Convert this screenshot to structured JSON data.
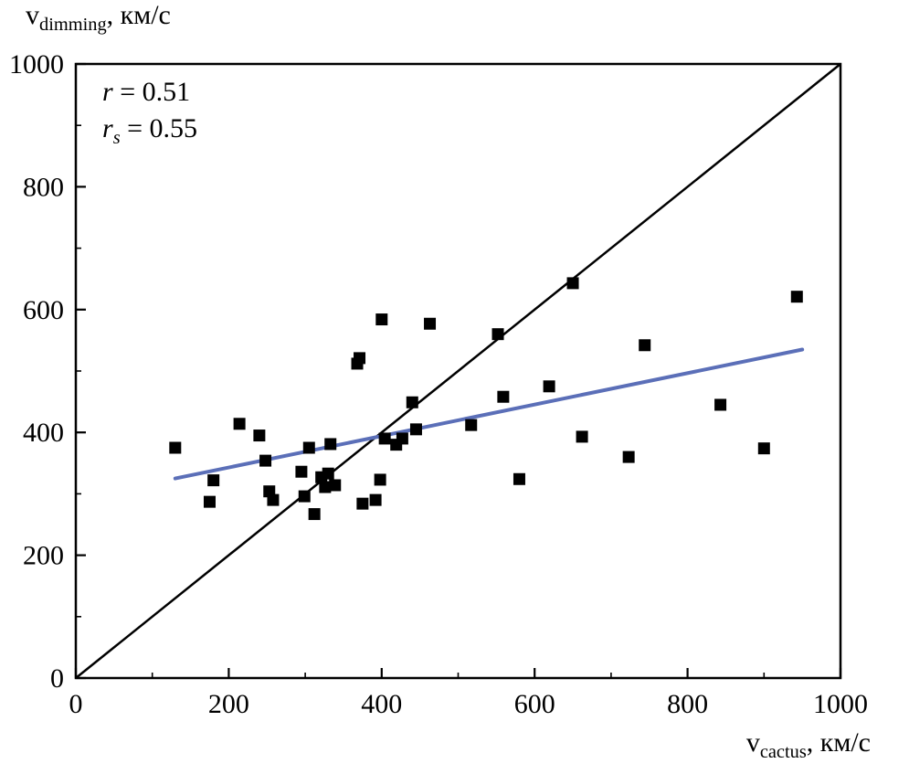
{
  "chart_data": {
    "type": "scatter",
    "title": "",
    "xlabel": {
      "base": "v",
      "sub": "cactus",
      "rest": ", км/с"
    },
    "ylabel": {
      "base": "v",
      "sub": "dimming",
      "rest": ", км/с"
    },
    "xlim": [
      0,
      1000
    ],
    "ylim": [
      0,
      1000
    ],
    "major_ticks": [
      0,
      200,
      400,
      600,
      800,
      1000
    ],
    "minor_tick_step": 100,
    "grid": false,
    "legend": "none",
    "annotations": [
      {
        "sym": "r",
        "sub": "",
        "val": " = 0.51"
      },
      {
        "sym": "r",
        "sub": "s",
        "val": " = 0.55"
      }
    ],
    "identity_line": {
      "x1": 0,
      "y1": 0,
      "x2": 1000,
      "y2": 1000,
      "color": "#000000",
      "width": 2.5
    },
    "fit_line": {
      "x1": 130,
      "y1": 325,
      "x2": 950,
      "y2": 535,
      "color": "#5b6fb8",
      "width": 4
    },
    "marker": {
      "shape": "square",
      "size": 13,
      "color": "#000000"
    },
    "points": [
      [
        130,
        375
      ],
      [
        175,
        287
      ],
      [
        180,
        322
      ],
      [
        214,
        414
      ],
      [
        240,
        395
      ],
      [
        248,
        354
      ],
      [
        253,
        304
      ],
      [
        258,
        290
      ],
      [
        295,
        336
      ],
      [
        299,
        296
      ],
      [
        305,
        375
      ],
      [
        312,
        267
      ],
      [
        321,
        327
      ],
      [
        326,
        311
      ],
      [
        330,
        333
      ],
      [
        333,
        381
      ],
      [
        339,
        314
      ],
      [
        368,
        512
      ],
      [
        371,
        521
      ],
      [
        375,
        284
      ],
      [
        392,
        290
      ],
      [
        398,
        323
      ],
      [
        400,
        584
      ],
      [
        404,
        390
      ],
      [
        419,
        380
      ],
      [
        427,
        390
      ],
      [
        440,
        449
      ],
      [
        445,
        405
      ],
      [
        463,
        577
      ],
      [
        517,
        412
      ],
      [
        552,
        560
      ],
      [
        559,
        458
      ],
      [
        580,
        324
      ],
      [
        619,
        475
      ],
      [
        650,
        643
      ],
      [
        662,
        393
      ],
      [
        723,
        360
      ],
      [
        744,
        542
      ],
      [
        843,
        445
      ],
      [
        900,
        374
      ],
      [
        943,
        621
      ]
    ]
  }
}
